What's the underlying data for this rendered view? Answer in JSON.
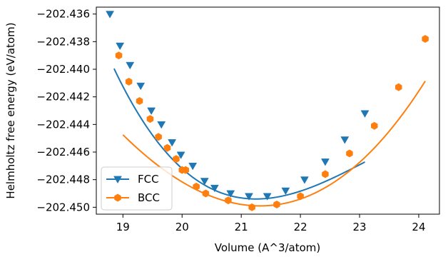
{
  "chart_data": {
    "type": "line",
    "title": "",
    "xlabel": "Volume (A^3/atom)",
    "ylabel": "Helmholtz free energy (eV/atom)",
    "xlim": [
      18.55,
      24.35
    ],
    "ylim": [
      -202.4505,
      -202.4355
    ],
    "xticks": [
      19,
      20,
      21,
      22,
      23,
      24
    ],
    "yticks": [
      -202.436,
      -202.438,
      -202.44,
      -202.442,
      -202.444,
      -202.446,
      -202.448,
      -202.45
    ],
    "legend": {
      "position": "lower-left"
    },
    "grid": false,
    "series": [
      {
        "name": "FCC",
        "color": "#1f77b4",
        "marker": "triangle-down",
        "points": [
          [
            18.78,
            -202.436
          ],
          [
            18.95,
            -202.4383
          ],
          [
            19.12,
            -202.4397
          ],
          [
            19.3,
            -202.4412
          ],
          [
            19.48,
            -202.443
          ],
          [
            19.65,
            -202.444
          ],
          [
            19.83,
            -202.4453
          ],
          [
            19.98,
            -202.4462
          ],
          [
            20.18,
            -202.447
          ],
          [
            20.38,
            -202.4481
          ],
          [
            20.55,
            -202.4486
          ],
          [
            20.82,
            -202.449
          ],
          [
            21.13,
            -202.4492
          ],
          [
            21.44,
            -202.4492
          ],
          [
            21.75,
            -202.4488
          ],
          [
            22.07,
            -202.448
          ],
          [
            22.42,
            -202.4467
          ],
          [
            22.75,
            -202.4451
          ],
          [
            23.09,
            -202.4432
          ]
        ],
        "fit": {
          "x_range": [
            18.85,
            23.09
          ],
          "coeffs": [
            -202.4494,
            0.00116,
            -0.0002
          ],
          "x0": 21.25
        }
      },
      {
        "name": "BCC",
        "color": "#ff7f0e",
        "marker": "hexagon",
        "points": [
          [
            18.93,
            -202.439
          ],
          [
            19.1,
            -202.4409
          ],
          [
            19.28,
            -202.4423
          ],
          [
            19.46,
            -202.4436
          ],
          [
            19.6,
            -202.4449
          ],
          [
            19.75,
            -202.4457
          ],
          [
            19.9,
            -202.4465
          ],
          [
            20.0,
            -202.4473
          ],
          [
            20.06,
            -202.4473
          ],
          [
            20.24,
            -202.4485
          ],
          [
            20.4,
            -202.449
          ],
          [
            20.78,
            -202.4495
          ],
          [
            21.18,
            -202.45
          ],
          [
            21.6,
            -202.4498
          ],
          [
            22.0,
            -202.4492
          ],
          [
            22.42,
            -202.4476
          ],
          [
            22.83,
            -202.4461
          ],
          [
            23.25,
            -202.4441
          ],
          [
            23.66,
            -202.4413
          ],
          [
            24.11,
            -202.4378
          ]
        ],
        "fit": {
          "x_range": [
            19.0,
            24.11
          ],
          "coeffs": [
            -202.4499,
            0.00105,
            4e-05
          ],
          "x0": 21.32
        }
      }
    ]
  }
}
